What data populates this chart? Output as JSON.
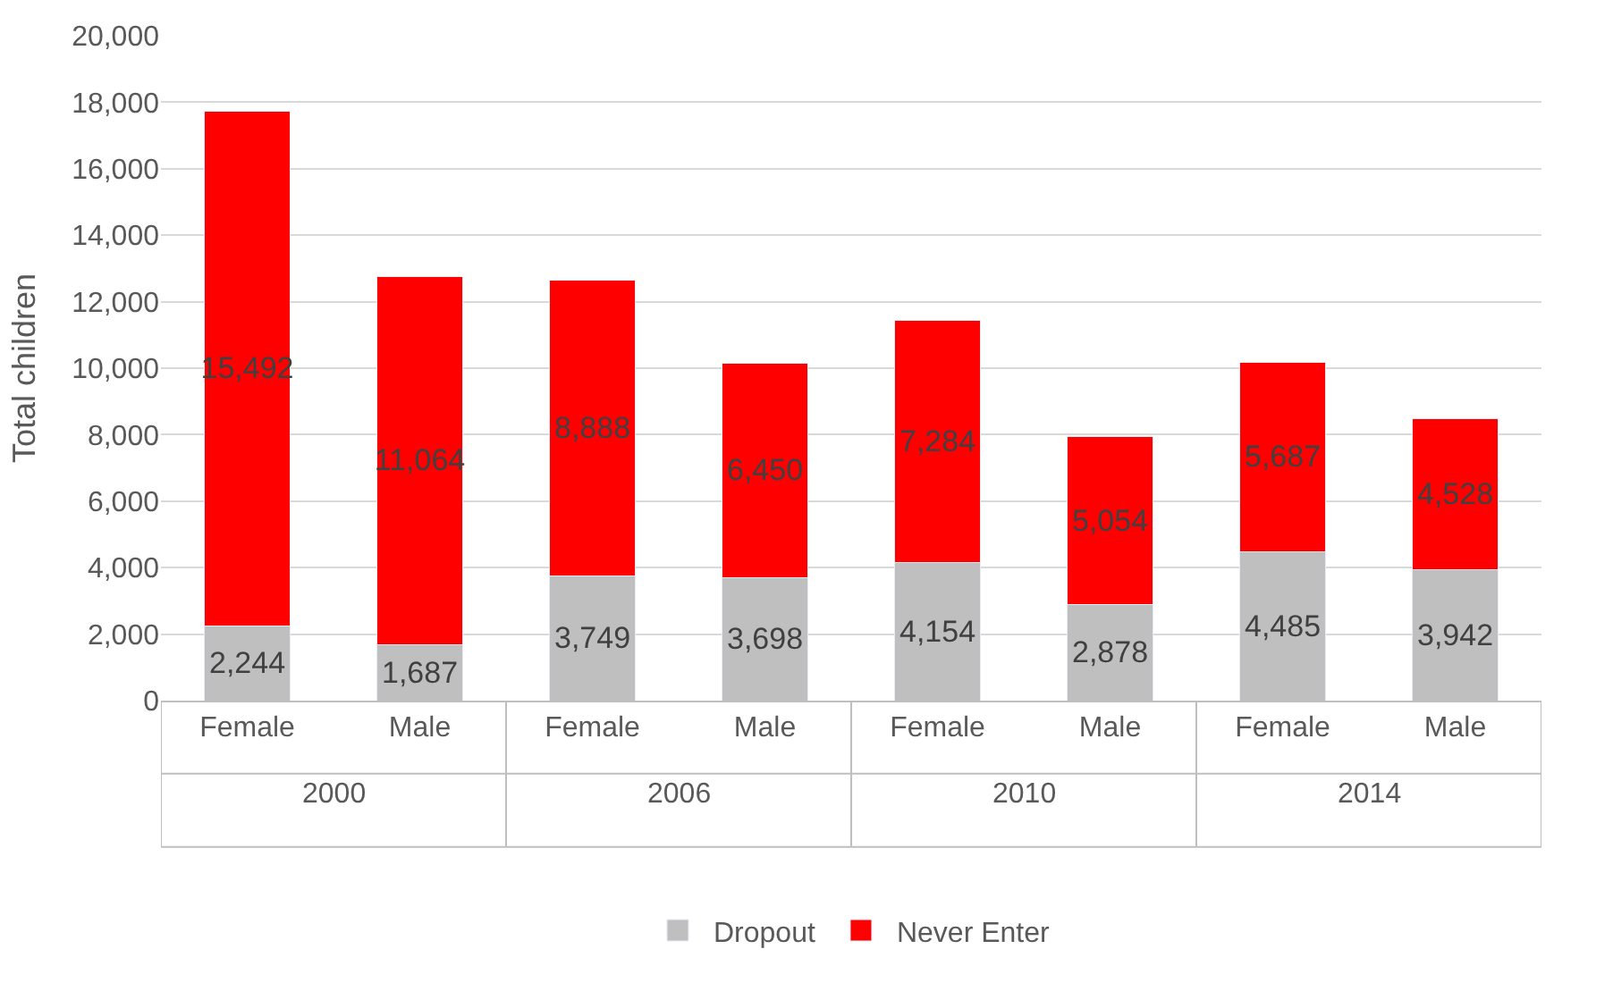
{
  "chart_data": {
    "type": "bar",
    "stacked": true,
    "ylabel": "Total children",
    "categories": [
      "Female",
      "Male",
      "Female",
      "Male",
      "Female",
      "Male",
      "Female",
      "Male"
    ],
    "series": [
      {
        "name": "Dropout",
        "color": "#bfbfbf",
        "values": [
          2244,
          1687,
          3749,
          3698,
          4154,
          2878,
          4485,
          3942
        ],
        "value_labels": [
          "2,244",
          "1,687",
          "3,749",
          "3,698",
          "4,154",
          "2,878",
          "4,485",
          "3,942"
        ]
      },
      {
        "name": "Never Enter",
        "color": "#ff0000",
        "values": [
          15492,
          11064,
          8888,
          6450,
          7284,
          5054,
          5687,
          4528
        ],
        "value_labels": [
          "15,492",
          "11,064",
          "8,888",
          "6,450",
          "7,284",
          "5,054",
          "5,687",
          "4,528"
        ]
      }
    ],
    "annotations": [
      "2000",
      "2006",
      "2010",
      "2014"
    ],
    "ylim": [
      0,
      20000
    ],
    "yticks": [
      0,
      {
        "value": 2000,
        "label": "2,000"
      },
      {
        "value": 4000,
        "label": "4,000"
      },
      {
        "value": 6000,
        "label": "6,000"
      },
      {
        "value": 8000,
        "label": "8,000"
      },
      {
        "value": 10000,
        "label": "10,000"
      },
      {
        "value": 12000,
        "label": "12,000"
      },
      {
        "value": 14000,
        "label": "14,000"
      },
      {
        "value": 16000,
        "label": "16,000"
      },
      {
        "value": 18000,
        "label": "18,000"
      },
      {
        "value": 20000,
        "label": "20,000"
      }
    ],
    "grid": "y",
    "legend": "bottom"
  }
}
